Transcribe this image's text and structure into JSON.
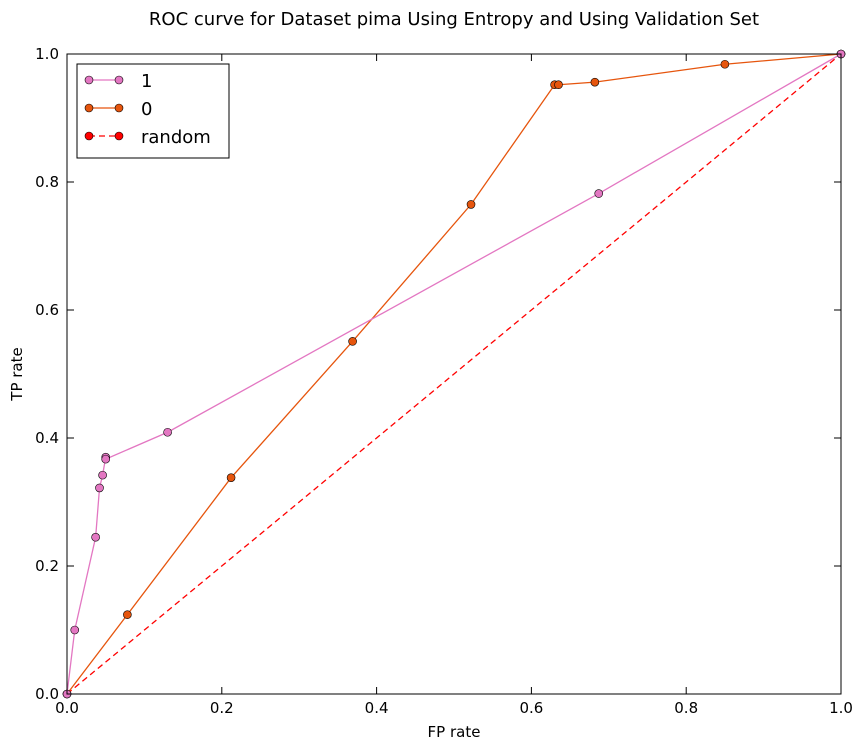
{
  "chart_data": {
    "type": "line",
    "title": "ROC curve for Dataset pima Using Entropy and Using Validation Set",
    "xlabel": "FP rate",
    "ylabel": "TP rate",
    "xlim": [
      0.0,
      1.0
    ],
    "ylim": [
      0.0,
      1.0
    ],
    "xticks": [
      "0.0",
      "0.2",
      "0.4",
      "0.6",
      "0.8",
      "1.0"
    ],
    "yticks": [
      "0.0",
      "0.2",
      "0.4",
      "0.6",
      "0.8",
      "1.0"
    ],
    "grid": false,
    "legend_position": "top-left",
    "series": [
      {
        "name": "1",
        "color": "#e377c2",
        "line_style": "solid",
        "points": [
          [
            0.0,
            0.0
          ],
          [
            0.01,
            0.1
          ],
          [
            0.037,
            0.245
          ],
          [
            0.042,
            0.322
          ],
          [
            0.046,
            0.342
          ],
          [
            0.05,
            0.37
          ],
          [
            0.05,
            0.367
          ],
          [
            0.13,
            0.409
          ],
          [
            0.687,
            0.782
          ],
          [
            1.0,
            1.0
          ]
        ]
      },
      {
        "name": "0",
        "color": "#e6550d",
        "line_style": "solid",
        "points": [
          [
            0.0,
            0.0
          ],
          [
            0.078,
            0.124
          ],
          [
            0.212,
            0.338
          ],
          [
            0.369,
            0.551
          ],
          [
            0.522,
            0.765
          ],
          [
            0.63,
            0.952
          ],
          [
            0.635,
            0.952
          ],
          [
            0.682,
            0.956
          ],
          [
            0.85,
            0.984
          ],
          [
            1.0,
            1.0
          ]
        ]
      },
      {
        "name": "random",
        "color": "#ff0000",
        "line_style": "dashed",
        "points": [
          [
            0.0,
            0.0
          ],
          [
            1.0,
            1.0
          ]
        ]
      }
    ]
  }
}
